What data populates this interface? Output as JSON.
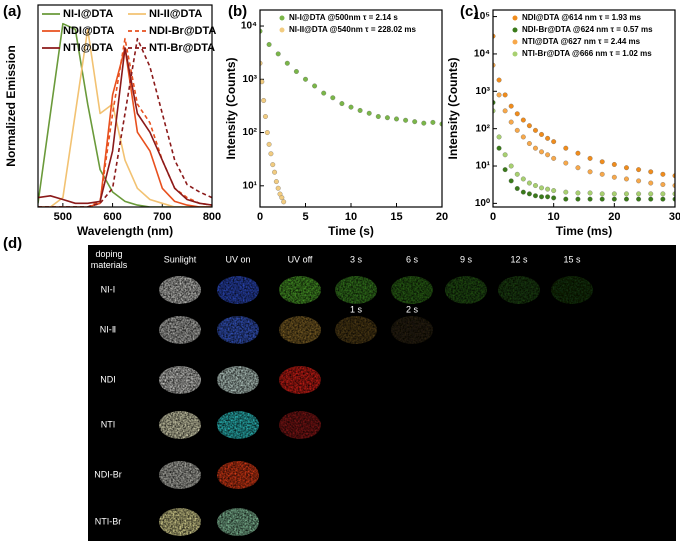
{
  "chart_data": [
    {
      "type": "line",
      "panel_label": "(a)",
      "x_label": "Wavelength (nm)",
      "y_label": "Normalized Emission",
      "xlim": [
        450,
        800
      ],
      "xticks": [
        500,
        600,
        700,
        800
      ],
      "ylim": [
        0,
        1.08
      ],
      "legend": "top",
      "x": [
        450,
        475,
        500,
        525,
        550,
        575,
        600,
        625,
        650,
        675,
        700,
        725,
        750,
        775,
        800
      ],
      "series": [
        {
          "name": "NI-I@DTA",
          "color": "#6a9a3a",
          "dash": false,
          "values": [
            0.02,
            0.5,
            0.98,
            0.95,
            0.55,
            0.2,
            0.08,
            0.03,
            0.01,
            0,
            0,
            0,
            0,
            0,
            0
          ]
        },
        {
          "name": "NI-II@DTA",
          "color": "#f2c272",
          "dash": false,
          "values": [
            0,
            0,
            0.05,
            0.5,
            0.95,
            0.5,
            0.55,
            0.25,
            0.1,
            0.04,
            0.02,
            0,
            0,
            0,
            0
          ]
        },
        {
          "name": "NDI@DTA",
          "color": "#e8501e",
          "dash": false,
          "values": [
            0,
            0,
            0,
            0,
            0,
            0.02,
            0.6,
            0.85,
            0.4,
            0.3,
            0.1,
            0.03,
            0.01,
            0,
            0
          ]
        },
        {
          "name": "NDI-Br@DTA",
          "color": "#e8501e",
          "dash": true,
          "values": [
            0,
            0,
            0,
            0,
            0,
            0.03,
            0.5,
            0.9,
            0.55,
            0.45,
            0.25,
            0.1,
            0.05,
            0.02,
            0.01
          ]
        },
        {
          "name": "NTI@DTA",
          "color": "#8b1a1a",
          "dash": false,
          "values": [
            0.05,
            0.06,
            0.04,
            0.02,
            0.02,
            0.03,
            0.3,
            0.85,
            0.5,
            0.4,
            0.25,
            0.1,
            0.04,
            0.02,
            0.01
          ]
        },
        {
          "name": "NTI-Br@DTA",
          "color": "#8b1a1a",
          "dash": true,
          "values": [
            0,
            0,
            0,
            0,
            0,
            0.02,
            0.1,
            0.5,
            0.9,
            0.75,
            0.5,
            0.25,
            0.12,
            0.08,
            0.05
          ]
        }
      ]
    },
    {
      "type": "scatter",
      "panel_label": "(b)",
      "x_label": "Time (s)",
      "y_label": "Intensity (Counts)",
      "xlim": [
        0,
        20
      ],
      "xticks": [
        0,
        5,
        10,
        15,
        20
      ],
      "yscale": "log",
      "ylim": [
        4,
        20000
      ],
      "yticks": [
        {
          "value": 10,
          "label": "10¹"
        },
        {
          "value": 100,
          "label": "10²"
        },
        {
          "value": 1000,
          "label": "10³"
        },
        {
          "value": 10000,
          "label": "10⁴"
        }
      ],
      "legend": "top right",
      "series": [
        {
          "name": "NI-I@DTA @500nm τ = 2.14 s",
          "color": "#7ab648",
          "x": [
            0,
            1,
            2,
            3,
            4,
            5,
            6,
            7,
            8,
            9,
            10,
            11,
            12,
            13,
            14,
            15,
            16,
            17,
            18,
            19,
            20
          ],
          "values": [
            8000,
            4500,
            3000,
            2000,
            1400,
            1000,
            750,
            550,
            450,
            350,
            300,
            260,
            230,
            200,
            190,
            180,
            170,
            160,
            150,
            155,
            145
          ]
        },
        {
          "name": "NI-II@DTA @540nm τ = 228.02 ms",
          "color": "#f2cc80",
          "x": [
            0,
            0.2,
            0.4,
            0.6,
            0.8,
            1,
            1.2,
            1.4,
            1.6,
            1.8,
            2,
            2.2,
            2.4,
            2.6
          ],
          "values": [
            2000,
            900,
            400,
            200,
            100,
            60,
            40,
            25,
            18,
            12,
            9,
            7,
            6,
            5
          ]
        }
      ]
    },
    {
      "type": "scatter",
      "panel_label": "(c)",
      "x_label": "Time (ms)",
      "y_label": "Intensity (Counts)",
      "xlim": [
        0,
        30
      ],
      "xticks": [
        0,
        10,
        20,
        30
      ],
      "yscale": "log",
      "ylim": [
        0.8,
        150000
      ],
      "yticks": [
        {
          "value": 1,
          "label": "10⁰"
        },
        {
          "value": 10,
          "label": "10¹"
        },
        {
          "value": 100,
          "label": "10²"
        },
        {
          "value": 1000,
          "label": "10³"
        },
        {
          "value": 10000,
          "label": "10⁴"
        },
        {
          "value": 100000,
          "label": "10⁵"
        }
      ],
      "legend": "top right",
      "series": [
        {
          "name": "NDI@DTA @614 nm τ = 1.93 ms",
          "color": "#f08c1c",
          "x": [
            0,
            1,
            2,
            3,
            4,
            5,
            6,
            7,
            8,
            9,
            10,
            12,
            14,
            16,
            18,
            20,
            22,
            24,
            26,
            28,
            30
          ],
          "values": [
            30000,
            2000,
            800,
            400,
            250,
            170,
            120,
            90,
            70,
            55,
            45,
            30,
            22,
            16,
            13,
            11,
            9,
            8,
            7,
            6,
            5.5
          ]
        },
        {
          "name": "NDI-Br@DTA @624 nm τ = 0.57 ms",
          "color": "#3a7a1a",
          "x": [
            0,
            1,
            2,
            3,
            4,
            5,
            6,
            7,
            8,
            9,
            10,
            12,
            14,
            16,
            18,
            20,
            22,
            24,
            26,
            28,
            30
          ],
          "values": [
            500,
            30,
            8,
            4,
            2.5,
            2,
            1.8,
            1.6,
            1.5,
            1.5,
            1.4,
            1.3,
            1.3,
            1.3,
            1.3,
            1.3,
            1.3,
            1.3,
            1.3,
            1.3,
            1.3
          ]
        },
        {
          "name": "NTI@DTA @627 nm τ = 2.44 ms",
          "color": "#f7a84a",
          "x": [
            0,
            1,
            2,
            3,
            4,
            5,
            6,
            7,
            8,
            9,
            10,
            12,
            14,
            16,
            18,
            20,
            22,
            24,
            26,
            28,
            30
          ],
          "values": [
            5000,
            800,
            300,
            150,
            90,
            60,
            40,
            30,
            24,
            20,
            16,
            12,
            9,
            7,
            6,
            5,
            4.5,
            4,
            3.5,
            3.2,
            3
          ]
        },
        {
          "name": "NTI-Br@DTA @666 nm τ = 1.02 ms",
          "color": "#a8d070",
          "x": [
            0,
            1,
            2,
            3,
            4,
            5,
            6,
            7,
            8,
            9,
            10,
            12,
            14,
            16,
            18,
            20,
            22,
            24,
            26,
            28,
            30
          ],
          "values": [
            300,
            60,
            20,
            10,
            6,
            4.5,
            3.5,
            3,
            2.6,
            2.4,
            2.2,
            2,
            1.9,
            1.9,
            1.8,
            1.8,
            1.8,
            1.8,
            1.8,
            1.8,
            1.8
          ]
        }
      ]
    }
  ],
  "panel_d": {
    "panel_label": "(d)",
    "header": [
      "doping materials",
      "Sunlight",
      "UV on",
      "UV off",
      "3 s",
      "6 s",
      "9 s",
      "12 s",
      "15 s"
    ],
    "row_labels": [
      "NI-Ⅰ",
      "NI-Ⅱ",
      "NDI",
      "NTI",
      "NDI-Br",
      "NTI-Br"
    ],
    "extra_labels": [
      "1 s",
      "2 s"
    ]
  }
}
